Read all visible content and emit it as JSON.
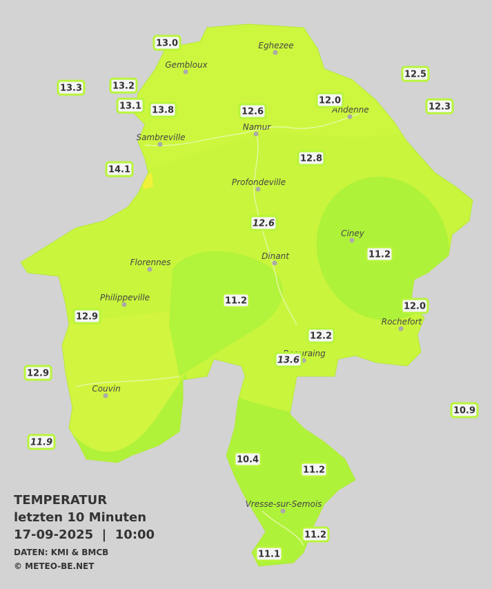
{
  "legend": {
    "title": "TEMPERATUR",
    "period": "letzten 10 Minuten",
    "timestamp": "17-09-2025  |  10:00",
    "source": "DATEN: KMI & BMCB",
    "copyright": "© METEO-BE.NET"
  },
  "cities": [
    "Eghezee",
    "Gembloux",
    "Andenne",
    "Namur",
    "Sambreville",
    "Profondeville",
    "Ciney",
    "Dinant",
    "Florennes",
    "Philippeville",
    "Rochefort",
    "Beauraing",
    "Couvin",
    "Vresse-sur-Semois"
  ],
  "stations": [
    {
      "label": "13.0",
      "italic": false
    },
    {
      "label": "13.3",
      "italic": false
    },
    {
      "label": "13.2",
      "italic": false
    },
    {
      "label": "13.1",
      "italic": false
    },
    {
      "label": "13.8",
      "italic": false
    },
    {
      "label": "12.6",
      "italic": false
    },
    {
      "label": "12.0",
      "italic": false
    },
    {
      "label": "12.5",
      "italic": false
    },
    {
      "label": "12.3",
      "italic": false
    },
    {
      "label": "14.1",
      "italic": false
    },
    {
      "label": "12.8",
      "italic": false
    },
    {
      "label": "12.6",
      "italic": true
    },
    {
      "label": "11.2",
      "italic": false
    },
    {
      "label": "11.2",
      "italic": false
    },
    {
      "label": "12.9",
      "italic": false
    },
    {
      "label": "12.0",
      "italic": false
    },
    {
      "label": "12.2",
      "italic": false
    },
    {
      "label": "13.6",
      "italic": true
    },
    {
      "label": "12.9",
      "italic": false
    },
    {
      "label": "10.9",
      "italic": false
    },
    {
      "label": "11.9",
      "italic": true
    },
    {
      "label": "10.4",
      "italic": false
    },
    {
      "label": "11.2",
      "italic": false
    },
    {
      "label": "11.2",
      "italic": false
    },
    {
      "label": "11.1",
      "italic": false
    }
  ]
}
